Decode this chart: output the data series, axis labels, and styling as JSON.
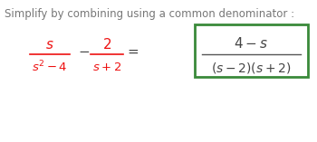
{
  "title": "Simplify by combining using a common denominator :",
  "title_color": "#777777",
  "title_fontsize": 8.5,
  "bg_color": "#ffffff",
  "red_color": "#ee1111",
  "dark_color": "#444444",
  "frac1_num": "$s$",
  "frac1_den": "$s^2 - 4$",
  "frac2_num": "$2$",
  "frac2_den": "$s + 2$",
  "ans_num": "$4 - s$",
  "ans_den": "$(s-2)(s+2)$",
  "box_color": "#3a8a3a",
  "equals": "$=$",
  "minus_dot": "$\\cdot$",
  "line_color": "#ee1111",
  "ans_line_color": "#555555",
  "title_font": "DejaVu Sans"
}
